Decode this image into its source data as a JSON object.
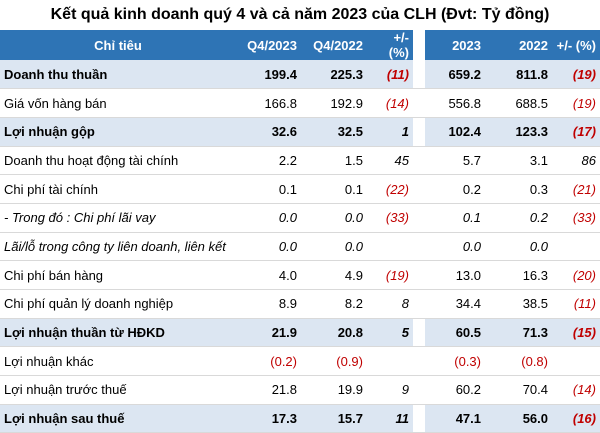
{
  "title": "Kết quả kinh doanh quý 4 và cả năm 2023 của CLH (Đvt: Tỷ đồng)",
  "headers": [
    "Chỉ tiêu",
    "Q4/2023",
    "Q4/2022",
    "+/- (%)",
    "2023",
    "2022",
    "+/- (%)"
  ],
  "rows": [
    {
      "label": "Doanh thu thuần",
      "q4_2023": "199.4",
      "q4_2022": "225.3",
      "q_pct": "(11)",
      "y2023": "659.2",
      "y2022": "811.8",
      "y_pct": "(19)"
    },
    {
      "label": "Giá vốn hàng bán",
      "q4_2023": "166.8",
      "q4_2022": "192.9",
      "q_pct": "(14)",
      "y2023": "556.8",
      "y2022": "688.5",
      "y_pct": "(19)"
    },
    {
      "label": "Lợi nhuận gộp",
      "q4_2023": "32.6",
      "q4_2022": "32.5",
      "q_pct": "1",
      "y2023": "102.4",
      "y2022": "123.3",
      "y_pct": "(17)"
    },
    {
      "label": "Doanh thu hoạt động tài chính",
      "q4_2023": "2.2",
      "q4_2022": "1.5",
      "q_pct": "45",
      "y2023": "5.7",
      "y2022": "3.1",
      "y_pct": "86"
    },
    {
      "label": "Chi phí tài chính",
      "q4_2023": "0.1",
      "q4_2022": "0.1",
      "q_pct": "(22)",
      "y2023": "0.2",
      "y2022": "0.3",
      "y_pct": "(21)"
    },
    {
      "label": "- Trong đó : Chi phí lãi vay",
      "q4_2023": "0.0",
      "q4_2022": "0.0",
      "q_pct": "(33)",
      "y2023": "0.1",
      "y2022": "0.2",
      "y_pct": "(33)"
    },
    {
      "label": "Lãi/lỗ trong công ty liên doanh, liên kết",
      "q4_2023": "0.0",
      "q4_2022": "0.0",
      "q_pct": "",
      "y2023": "0.0",
      "y2022": "0.0",
      "y_pct": ""
    },
    {
      "label": "Chi phí bán hàng",
      "q4_2023": "4.0",
      "q4_2022": "4.9",
      "q_pct": "(19)",
      "y2023": "13.0",
      "y2022": "16.3",
      "y_pct": "(20)"
    },
    {
      "label": "Chi phí quản lý doanh nghiệp",
      "q4_2023": "8.9",
      "q4_2022": "8.2",
      "q_pct": "8",
      "y2023": "34.4",
      "y2022": "38.5",
      "y_pct": "(11)"
    },
    {
      "label": "Lợi nhuận thuần từ HĐKD",
      "q4_2023": "21.9",
      "q4_2022": "20.8",
      "q_pct": "5",
      "y2023": "60.5",
      "y2022": "71.3",
      "y_pct": "(15)"
    },
    {
      "label": "Lợi nhuận khác",
      "q4_2023": "(0.2)",
      "q4_2022": "(0.9)",
      "q_pct": "",
      "y2023": "(0.3)",
      "y2022": "(0.8)",
      "y_pct": ""
    },
    {
      "label": "Lợi nhuận trước thuế",
      "q4_2023": "21.8",
      "q4_2022": "19.9",
      "q_pct": "9",
      "y2023": "60.2",
      "y2022": "70.4",
      "y_pct": "(14)"
    },
    {
      "label": "Lợi nhuận sau thuế",
      "q4_2023": "17.3",
      "q4_2022": "15.7",
      "q_pct": "11",
      "y2023": "47.1",
      "y2022": "56.0",
      "y_pct": "(16)"
    }
  ],
  "colors": {
    "header_bg": "#2e74b5",
    "highlight_row_bg": "#dce6f2",
    "negative": "#c00000"
  }
}
